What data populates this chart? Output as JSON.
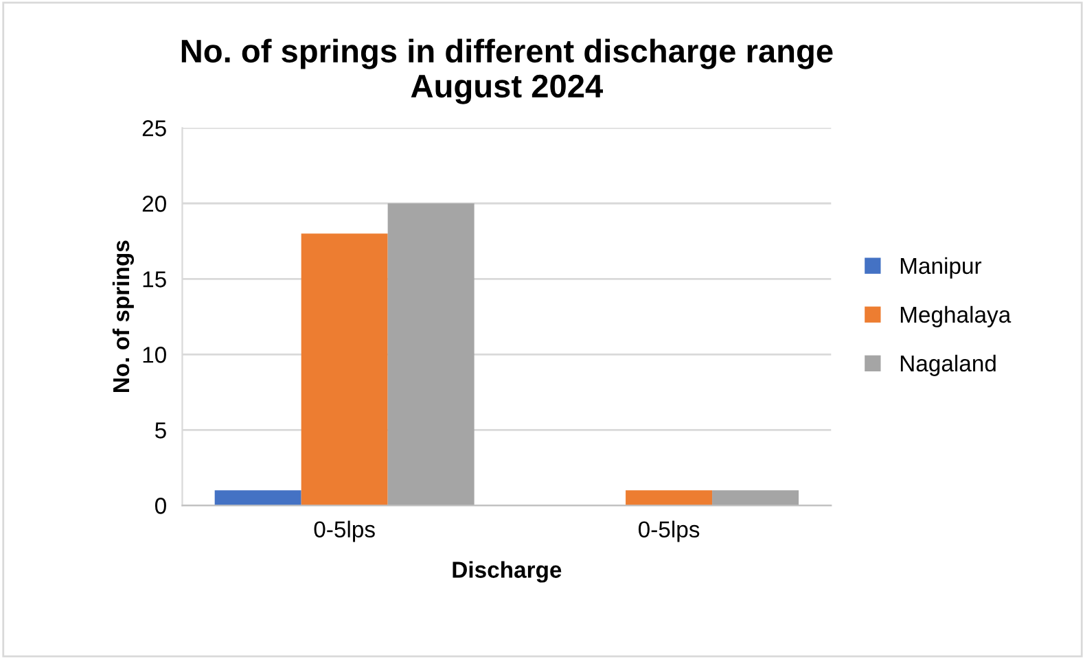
{
  "chart_data": {
    "type": "bar",
    "title": "No. of springs in different discharge range\nAugust 2024",
    "xlabel": "Discharge",
    "ylabel": "No. of springs",
    "categories": [
      "0-5lps",
      "0-5lps"
    ],
    "series": [
      {
        "name": "Manipur",
        "color": "#4472c4",
        "values": [
          1,
          0
        ]
      },
      {
        "name": "Meghalaya",
        "color": "#ed7d31",
        "values": [
          18,
          1
        ]
      },
      {
        "name": "Nagaland",
        "color": "#a5a5a5",
        "values": [
          20,
          1
        ]
      }
    ],
    "ylim": [
      0,
      25
    ],
    "yticks": [
      0,
      5,
      10,
      15,
      20,
      25
    ],
    "grid": "y",
    "legend": "right"
  }
}
